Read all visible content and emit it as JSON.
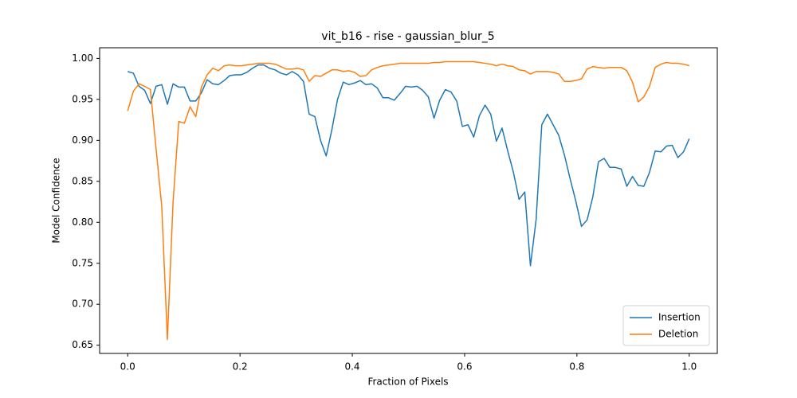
{
  "chart_data": {
    "type": "line",
    "title": "vit_b16 - rise - gaussian_blur_5",
    "xlabel": "Fraction of Pixels",
    "ylabel": "Model Confidence",
    "x": [
      0,
      0.0101,
      0.0202,
      0.0303,
      0.0404,
      0.0505,
      0.0606,
      0.0707,
      0.0808,
      0.0909,
      0.101,
      0.1111,
      0.1212,
      0.1313,
      0.1414,
      0.1515,
      0.1616,
      0.1717,
      0.1818,
      0.1919,
      0.202,
      0.2121,
      0.2222,
      0.2323,
      0.2424,
      0.2525,
      0.2626,
      0.2727,
      0.2828,
      0.2929,
      0.303,
      0.3131,
      0.3232,
      0.3333,
      0.3434,
      0.3535,
      0.3636,
      0.3737,
      0.3838,
      0.3939,
      0.404,
      0.4141,
      0.4242,
      0.4343,
      0.4444,
      0.4545,
      0.4646,
      0.4747,
      0.4848,
      0.4949,
      0.5051,
      0.5152,
      0.5253,
      0.5354,
      0.5455,
      0.5556,
      0.5657,
      0.5758,
      0.5859,
      0.596,
      0.6061,
      0.6162,
      0.6263,
      0.6364,
      0.6465,
      0.6566,
      0.6667,
      0.6768,
      0.6869,
      0.697,
      0.7071,
      0.7172,
      0.7273,
      0.7374,
      0.7475,
      0.7576,
      0.7677,
      0.7778,
      0.7879,
      0.798,
      0.8081,
      0.8182,
      0.8283,
      0.8384,
      0.8485,
      0.8586,
      0.8687,
      0.8788,
      0.8889,
      0.899,
      0.9091,
      0.9192,
      0.9293,
      0.9394,
      0.9495,
      0.9596,
      0.9697,
      0.9798,
      0.9899,
      1
    ],
    "series": [
      {
        "name": "Insertion",
        "color": "#1f77b4",
        "values": [
          0.984,
          0.982,
          0.966,
          0.961,
          0.945,
          0.966,
          0.968,
          0.944,
          0.969,
          0.965,
          0.965,
          0.948,
          0.948,
          0.958,
          0.974,
          0.969,
          0.968,
          0.973,
          0.979,
          0.98,
          0.98,
          0.983,
          0.988,
          0.992,
          0.992,
          0.988,
          0.986,
          0.982,
          0.98,
          0.984,
          0.98,
          0.972,
          0.932,
          0.929,
          0.9,
          0.881,
          0.913,
          0.95,
          0.971,
          0.968,
          0.97,
          0.973,
          0.968,
          0.969,
          0.964,
          0.952,
          0.952,
          0.949,
          0.957,
          0.966,
          0.965,
          0.966,
          0.961,
          0.953,
          0.927,
          0.949,
          0.962,
          0.959,
          0.948,
          0.917,
          0.919,
          0.904,
          0.93,
          0.943,
          0.932,
          0.899,
          0.915,
          0.887,
          0.861,
          0.828,
          0.837,
          0.747,
          0.803,
          0.919,
          0.932,
          0.919,
          0.906,
          0.882,
          0.853,
          0.826,
          0.795,
          0.803,
          0.831,
          0.874,
          0.878,
          0.867,
          0.867,
          0.865,
          0.844,
          0.856,
          0.845,
          0.844,
          0.861,
          0.887,
          0.886,
          0.893,
          0.894,
          0.879,
          0.886,
          0.902
        ]
      },
      {
        "name": "Deletion",
        "color": "#ff7f0e",
        "values": [
          0.936,
          0.96,
          0.969,
          0.966,
          0.962,
          0.89,
          0.82,
          0.657,
          0.825,
          0.923,
          0.921,
          0.941,
          0.929,
          0.965,
          0.98,
          0.988,
          0.985,
          0.991,
          0.992,
          0.991,
          0.991,
          0.992,
          0.993,
          0.994,
          0.994,
          0.994,
          0.993,
          0.99,
          0.987,
          0.987,
          0.988,
          0.986,
          0.972,
          0.979,
          0.978,
          0.982,
          0.986,
          0.986,
          0.984,
          0.985,
          0.983,
          0.978,
          0.979,
          0.986,
          0.989,
          0.991,
          0.992,
          0.993,
          0.994,
          0.994,
          0.994,
          0.994,
          0.994,
          0.994,
          0.995,
          0.995,
          0.996,
          0.996,
          0.996,
          0.996,
          0.996,
          0.996,
          0.995,
          0.994,
          0.993,
          0.991,
          0.993,
          0.991,
          0.99,
          0.986,
          0.985,
          0.981,
          0.984,
          0.984,
          0.984,
          0.983,
          0.981,
          0.972,
          0.972,
          0.973,
          0.975,
          0.987,
          0.99,
          0.989,
          0.988,
          0.989,
          0.989,
          0.989,
          0.985,
          0.971,
          0.947,
          0.953,
          0.966,
          0.989,
          0.993,
          0.995,
          0.994,
          0.994,
          0.993,
          0.991
        ]
      }
    ],
    "xlim": [
      -0.05,
      1.05
    ],
    "ylim": [
      0.64,
      1.013
    ],
    "xticks": [
      {
        "value": 0,
        "label": "0.0"
      },
      0.2,
      0.4,
      0.6,
      0.8,
      {
        "value": 1,
        "label": "1.0"
      }
    ],
    "yticks": [
      0.65,
      {
        "value": 0.7,
        "label": "0.70"
      },
      0.75,
      {
        "value": 0.8,
        "label": "0.80"
      },
      0.85,
      {
        "value": 0.9,
        "label": "0.90"
      },
      0.95,
      {
        "value": 1,
        "label": "1.00"
      }
    ],
    "grid": false,
    "legend": "lower right"
  }
}
